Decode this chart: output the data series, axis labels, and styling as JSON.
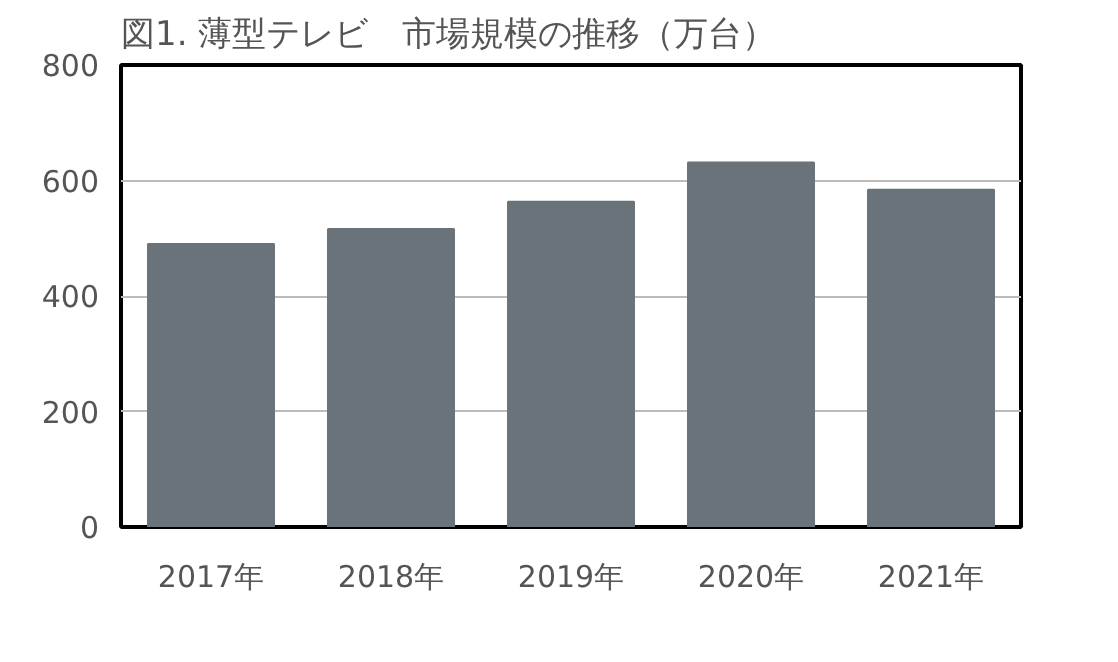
{
  "chart_data": {
    "type": "bar",
    "title": "図1. 薄型テレビ　市場規模の推移（万台）",
    "categories": [
      "2017年",
      "2018年",
      "2019年",
      "2020年",
      "2021年"
    ],
    "values": [
      490,
      516,
      563,
      631,
      584
    ],
    "color": "#6a737a",
    "ylim": [
      0,
      800
    ],
    "yticks": [
      0,
      200,
      400,
      600,
      800
    ],
    "grid": "y"
  }
}
